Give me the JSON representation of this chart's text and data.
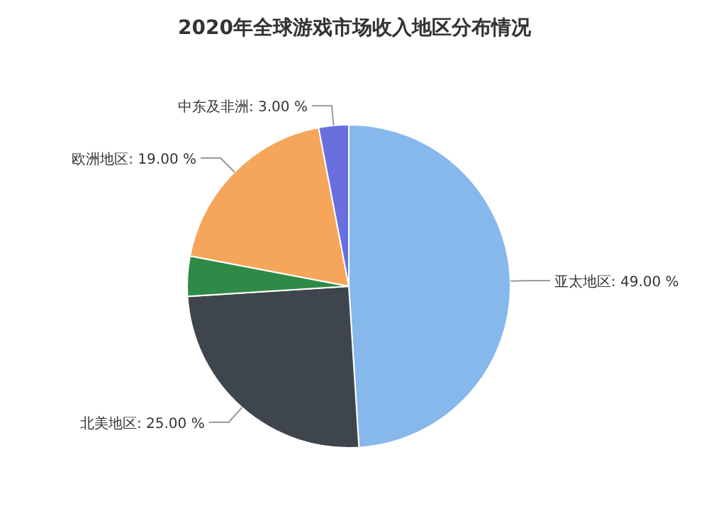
{
  "chart_data": {
    "type": "pie",
    "title": "2020年全球游戏市场收入地区分布情况",
    "categories": [
      "亚太地区",
      "北美地区",
      null,
      "欧洲地区",
      "中东及非洲"
    ],
    "values": [
      49,
      25,
      4,
      19,
      3
    ],
    "value_labels": [
      "49.00 %",
      "25.00 %",
      null,
      "19.00 %",
      "3.00 %"
    ],
    "colors": [
      "#86b8ec",
      "#3f454c",
      "#2f8a47",
      "#f6a65a",
      "#6a6fe0"
    ]
  }
}
